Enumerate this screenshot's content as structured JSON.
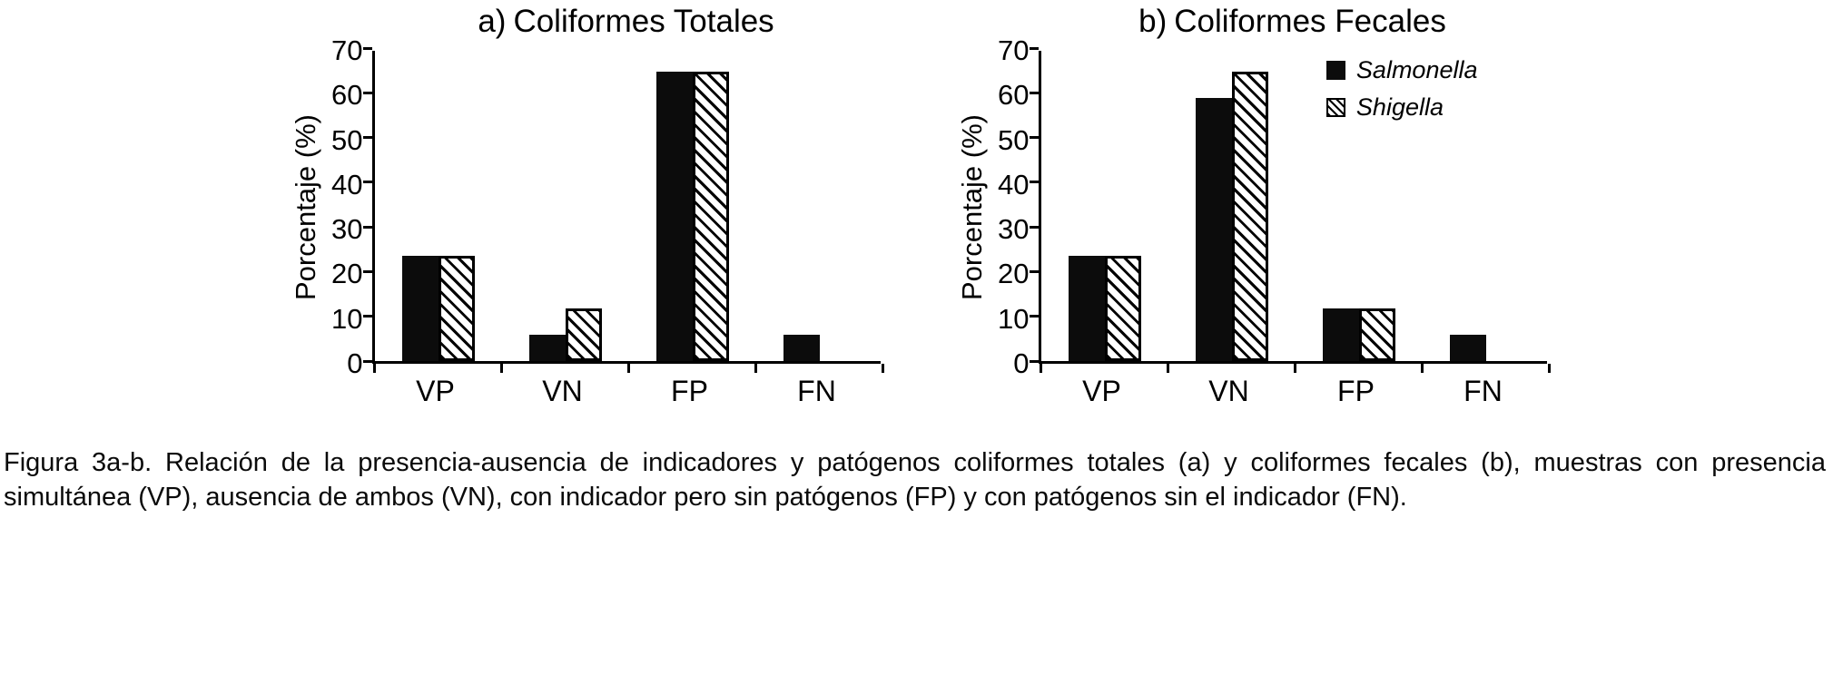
{
  "figure": {
    "caption": "Figura 3a-b. Relación de la presencia-ausencia de indicadores y patógenos coliformes totales (a) y coliformes fecales (b), muestras con presencia simultánea (VP), ausencia de ambos (VN), con indicador pero sin patógenos (FP) y con patógenos sin el indicador (FN)."
  },
  "colors": {
    "bar_fill": "#0c0c0c",
    "axis": "#000000",
    "background": "#ffffff"
  },
  "legend": {
    "items": [
      {
        "label": "Salmonella",
        "style": "solid"
      },
      {
        "label": "Shigella",
        "style": "hatched"
      }
    ]
  },
  "chart_data": [
    {
      "type": "bar",
      "title_prefix": "a)",
      "title": "Coliformes Totales",
      "ylabel": "Porcentaje (%)",
      "ylim": [
        0,
        70
      ],
      "ytick_step": 10,
      "grid": false,
      "legend_position": "none",
      "categories": [
        "VP",
        "VN",
        "FP",
        "FN"
      ],
      "series": [
        {
          "name": "Salmonella",
          "style": "solid",
          "values": [
            23.5,
            5.9,
            64.7,
            5.9
          ]
        },
        {
          "name": "Shigella",
          "style": "hatched",
          "values": [
            23.5,
            11.8,
            64.7,
            0
          ]
        }
      ]
    },
    {
      "type": "bar",
      "title_prefix": "b)",
      "title": "Coliformes Fecales",
      "ylabel": "Porcentaje (%)",
      "ylim": [
        0,
        70
      ],
      "ytick_step": 10,
      "grid": false,
      "legend_position": "top-right",
      "categories": [
        "VP",
        "VN",
        "FP",
        "FN"
      ],
      "series": [
        {
          "name": "Salmonella",
          "style": "solid",
          "values": [
            23.5,
            58.8,
            11.8,
            5.9
          ]
        },
        {
          "name": "Shigella",
          "style": "hatched",
          "values": [
            23.5,
            64.7,
            11.8,
            0
          ]
        }
      ]
    }
  ]
}
